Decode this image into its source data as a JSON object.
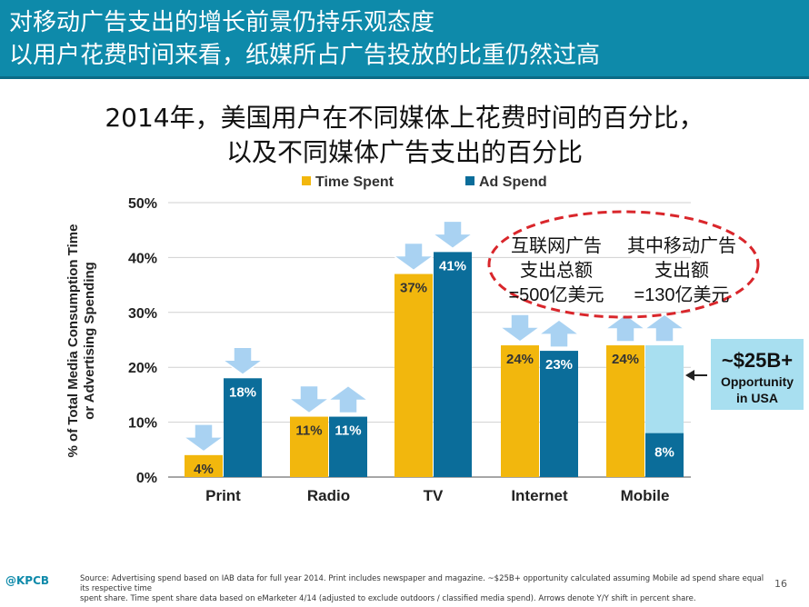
{
  "header": {
    "line1": "对移动广告支出的增长前景仍持乐观态度",
    "line2": "以用户花费时间来看，纸媒所占广告投放的比重仍然过高"
  },
  "logo": "@KPCB",
  "page_number": "16",
  "footer": {
    "line1": "Source: Advertising spend based on IAB data for full year 2014. Print includes newspaper and magazine. ~$25B+ opportunity calculated assuming Mobile ad spend share equal its respective time",
    "line2": "spent share. Time spent share data based on eMarketer 4/14 (adjusted to exclude outdoors / classified media spend). Arrows denote Y/Y shift in percent share."
  },
  "colors": {
    "header": "#0e8aaa",
    "time_spent": "#f2b70d",
    "ad_spend": "#0b6d9a",
    "opportunity": "#a8dff0",
    "arrow": "#a9d2f2",
    "ellipse": "#d9262b"
  },
  "callout": {
    "left_lines": [
      "互联网广告",
      "支出总额",
      "=500亿美元"
    ],
    "right_lines": [
      "其中移动广告",
      "支出额",
      "=130亿美元"
    ]
  },
  "opportunity": {
    "line1": "~$25B+",
    "line2": "Opportunity",
    "line3": "in USA"
  },
  "chart_data": {
    "type": "bar",
    "title": "2014年，美国用户在不同媒体上花费时间的百分比，",
    "subtitle": "以及不同媒体广告支出的百分比",
    "ylabel_line1": "% of Total Media Consumption Time",
    "ylabel_line2": "or Advertising Spending",
    "ylim": [
      0,
      50
    ],
    "yticks": [
      "0%",
      "10%",
      "20%",
      "30%",
      "40%",
      "50%"
    ],
    "categories": [
      "Print",
      "Radio",
      "TV",
      "Internet",
      "Mobile"
    ],
    "series": [
      {
        "name": "Time Spent",
        "values": [
          4,
          11,
          37,
          24,
          24
        ],
        "labels": [
          "4%",
          "11%",
          "37%",
          "24%",
          "24%"
        ],
        "arrows": [
          "down",
          "down",
          "down",
          "down",
          "up"
        ]
      },
      {
        "name": "Ad Spend",
        "values": [
          18,
          11,
          41,
          23,
          8
        ],
        "labels": [
          "18%",
          "11%",
          "41%",
          "23%",
          "8%"
        ],
        "arrows": [
          "down",
          "up",
          "down",
          "up",
          "up"
        ]
      }
    ],
    "opportunity_top": 24,
    "legend_position": "top-center",
    "grid": true
  }
}
